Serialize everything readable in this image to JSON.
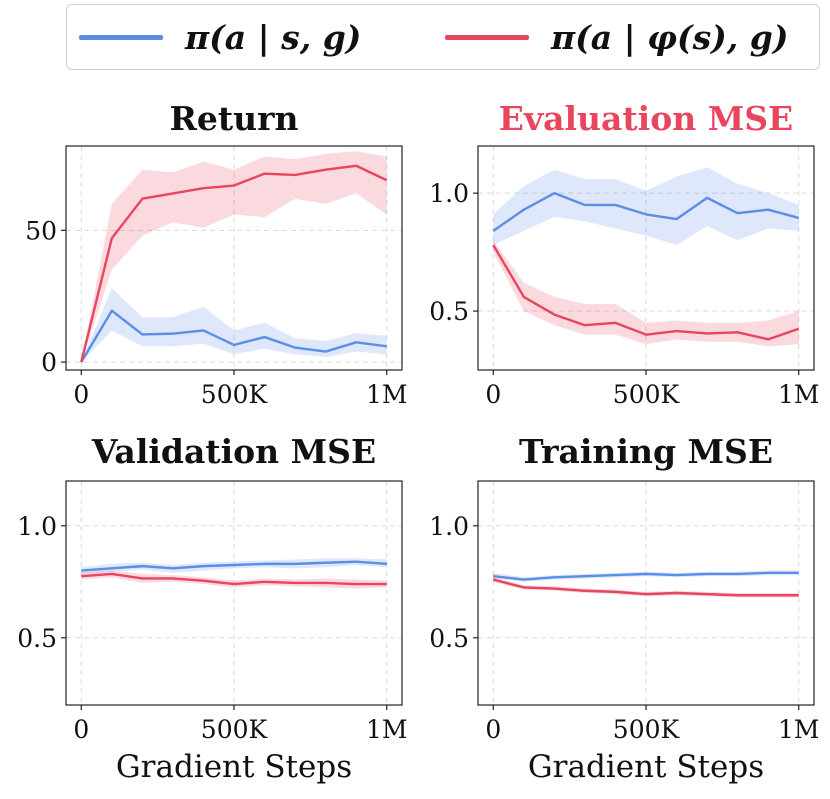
{
  "colors": {
    "blue": "#5b8ee6",
    "red": "#e8455f",
    "title_default": "#111111",
    "title_highlight": "#e8455f"
  },
  "legend": [
    {
      "label": "π(a | s, g)",
      "color": "#5b8ee6"
    },
    {
      "label": "π(a | φ(s), g)",
      "color": "#e8455f"
    }
  ],
  "chart_data": [
    {
      "type": "line",
      "title": "Return",
      "title_color": "#111111",
      "xlabel": "",
      "ylabel": "",
      "x": [
        0,
        100000,
        200000,
        300000,
        400000,
        500000,
        600000,
        700000,
        800000,
        900000,
        1000000
      ],
      "xlim": [
        -50000,
        1050000
      ],
      "ylim": [
        -3,
        82
      ],
      "xticks": [
        0,
        500000,
        1000000
      ],
      "xtick_labels": [
        "0",
        "500K",
        "1M"
      ],
      "yticks": [
        0,
        50
      ],
      "ytick_labels": [
        "0",
        "50"
      ],
      "series": [
        {
          "name": "π(a | s, g)",
          "color": "#5b8ee6",
          "values": [
            0,
            19.5,
            10.5,
            10.8,
            12,
            6.5,
            9.5,
            5.5,
            4,
            7.5,
            6
          ],
          "lower": [
            0,
            12,
            6,
            6,
            7,
            3,
            5,
            3,
            2,
            4,
            3
          ],
          "upper": [
            0,
            28,
            17,
            17,
            21,
            12,
            15,
            9,
            8,
            11,
            10
          ]
        },
        {
          "name": "π(a | φ(s), g)",
          "color": "#e8455f",
          "values": [
            0,
            47,
            62,
            64,
            66,
            67,
            71.5,
            71,
            73,
            74.5,
            69
          ],
          "lower": [
            0,
            35,
            48,
            53,
            51,
            56,
            55,
            62,
            60,
            64,
            56
          ],
          "upper": [
            0,
            60,
            73,
            72,
            76,
            73,
            78,
            77,
            79,
            80,
            78
          ]
        }
      ]
    },
    {
      "type": "line",
      "title": "Evaluation MSE",
      "title_color": "#e8455f",
      "xlabel": "",
      "ylabel": "",
      "x": [
        0,
        100000,
        200000,
        300000,
        400000,
        500000,
        600000,
        700000,
        800000,
        900000,
        1000000
      ],
      "xlim": [
        -50000,
        1050000
      ],
      "ylim": [
        0.25,
        1.2
      ],
      "xticks": [
        0,
        500000,
        1000000
      ],
      "xtick_labels": [
        "0",
        "500K",
        "1M"
      ],
      "yticks": [
        0.5,
        1.0
      ],
      "ytick_labels": [
        "0.5",
        "1.0"
      ],
      "series": [
        {
          "name": "π(a | s, g)",
          "color": "#5b8ee6",
          "values": [
            0.84,
            0.93,
            1.0,
            0.95,
            0.95,
            0.91,
            0.89,
            0.98,
            0.915,
            0.93,
            0.895
          ],
          "lower": [
            0.78,
            0.84,
            0.9,
            0.88,
            0.85,
            0.82,
            0.78,
            0.86,
            0.8,
            0.85,
            0.84
          ],
          "upper": [
            0.91,
            1.03,
            1.1,
            1.06,
            1.06,
            1.01,
            1.07,
            1.11,
            1.04,
            1.0,
            0.95
          ]
        },
        {
          "name": "π(a | φ(s), g)",
          "color": "#e8455f",
          "values": [
            0.78,
            0.56,
            0.485,
            0.44,
            0.45,
            0.4,
            0.415,
            0.405,
            0.41,
            0.38,
            0.425
          ],
          "lower": [
            0.75,
            0.5,
            0.44,
            0.4,
            0.4,
            0.36,
            0.38,
            0.37,
            0.37,
            0.35,
            0.36
          ],
          "upper": [
            0.8,
            0.62,
            0.56,
            0.53,
            0.53,
            0.45,
            0.46,
            0.45,
            0.45,
            0.46,
            0.5
          ]
        }
      ]
    },
    {
      "type": "line",
      "title": "Validation MSE",
      "title_color": "#111111",
      "xlabel": "Gradient Steps",
      "ylabel": "",
      "x": [
        0,
        100000,
        200000,
        300000,
        400000,
        500000,
        600000,
        700000,
        800000,
        900000,
        1000000
      ],
      "xlim": [
        -50000,
        1050000
      ],
      "ylim": [
        0.2,
        1.2
      ],
      "xticks": [
        0,
        500000,
        1000000
      ],
      "xtick_labels": [
        "0",
        "500K",
        "1M"
      ],
      "yticks": [
        0.5,
        1.0
      ],
      "ytick_labels": [
        "0.5",
        "1.0"
      ],
      "series": [
        {
          "name": "π(a | s, g)",
          "color": "#5b8ee6",
          "values": [
            0.8,
            0.81,
            0.82,
            0.81,
            0.82,
            0.825,
            0.83,
            0.83,
            0.835,
            0.84,
            0.83
          ],
          "lower": [
            0.785,
            0.795,
            0.805,
            0.79,
            0.8,
            0.81,
            0.815,
            0.81,
            0.815,
            0.825,
            0.815
          ],
          "upper": [
            0.815,
            0.83,
            0.835,
            0.825,
            0.835,
            0.84,
            0.845,
            0.85,
            0.855,
            0.855,
            0.85
          ]
        },
        {
          "name": "π(a | φ(s), g)",
          "color": "#e8455f",
          "values": [
            0.775,
            0.785,
            0.765,
            0.765,
            0.755,
            0.74,
            0.75,
            0.745,
            0.745,
            0.74,
            0.74
          ],
          "lower": [
            0.76,
            0.77,
            0.745,
            0.75,
            0.74,
            0.725,
            0.735,
            0.73,
            0.725,
            0.72,
            0.725
          ],
          "upper": [
            0.79,
            0.8,
            0.785,
            0.78,
            0.77,
            0.755,
            0.765,
            0.76,
            0.765,
            0.76,
            0.755
          ]
        }
      ]
    },
    {
      "type": "line",
      "title": "Training MSE",
      "title_color": "#111111",
      "xlabel": "Gradient Steps",
      "ylabel": "",
      "x": [
        0,
        100000,
        200000,
        300000,
        400000,
        500000,
        600000,
        700000,
        800000,
        900000,
        1000000
      ],
      "xlim": [
        -50000,
        1050000
      ],
      "ylim": [
        0.2,
        1.2
      ],
      "xticks": [
        0,
        500000,
        1000000
      ],
      "xtick_labels": [
        "0",
        "500K",
        "1M"
      ],
      "yticks": [
        0.5,
        1.0
      ],
      "ytick_labels": [
        "0.5",
        "1.0"
      ],
      "series": [
        {
          "name": "π(a | s, g)",
          "color": "#5b8ee6",
          "values": [
            0.775,
            0.76,
            0.77,
            0.775,
            0.78,
            0.785,
            0.78,
            0.785,
            0.785,
            0.79,
            0.79
          ],
          "lower": [
            0.765,
            0.75,
            0.76,
            0.765,
            0.77,
            0.775,
            0.77,
            0.775,
            0.775,
            0.78,
            0.78
          ],
          "upper": [
            0.79,
            0.77,
            0.78,
            0.785,
            0.79,
            0.795,
            0.79,
            0.795,
            0.795,
            0.8,
            0.8
          ]
        },
        {
          "name": "π(a | φ(s), g)",
          "color": "#e8455f",
          "values": [
            0.76,
            0.725,
            0.72,
            0.71,
            0.705,
            0.695,
            0.7,
            0.695,
            0.69,
            0.69,
            0.69
          ],
          "lower": [
            0.75,
            0.715,
            0.71,
            0.7,
            0.695,
            0.685,
            0.69,
            0.685,
            0.68,
            0.68,
            0.68
          ],
          "upper": [
            0.77,
            0.735,
            0.73,
            0.72,
            0.715,
            0.705,
            0.71,
            0.705,
            0.7,
            0.7,
            0.7
          ]
        }
      ]
    }
  ]
}
